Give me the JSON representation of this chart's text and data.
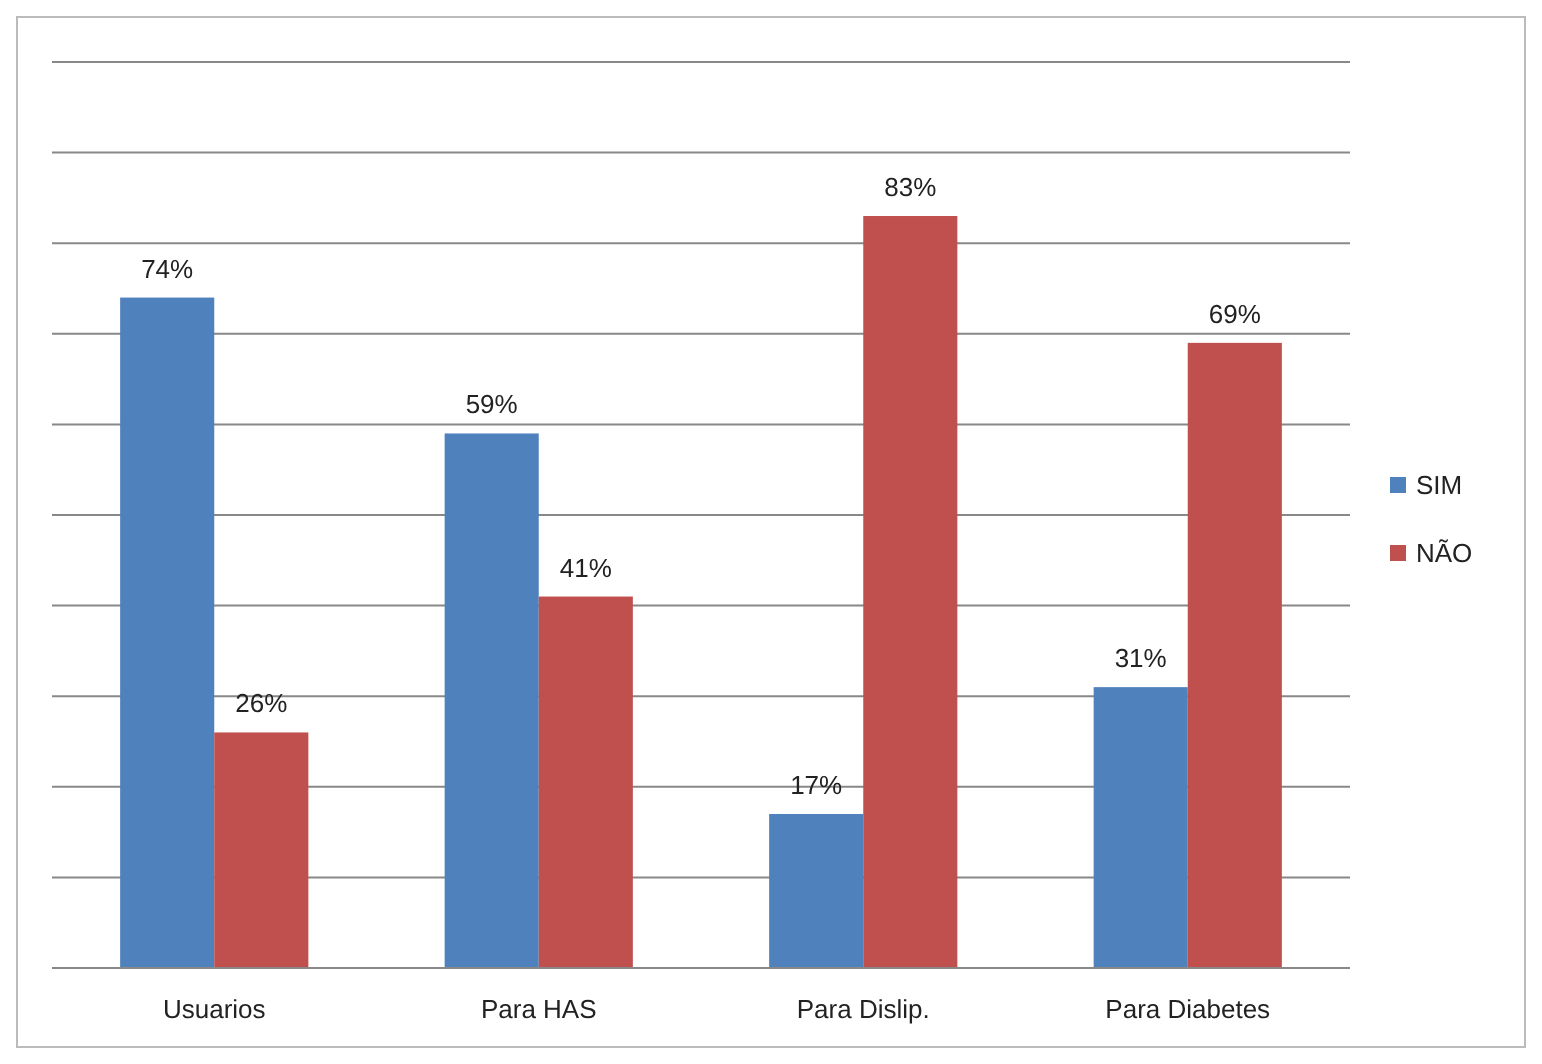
{
  "chart_data": {
    "type": "bar",
    "categories": [
      "Usuarios",
      "Para HAS",
      "Para Dislip.",
      "Para Diabetes"
    ],
    "series": [
      {
        "name": "SIM",
        "color": "#4f81bd",
        "values": [
          74,
          59,
          17,
          31
        ],
        "value_labels": [
          "74%",
          "59%",
          "17%",
          "31%"
        ]
      },
      {
        "name": "NÃO",
        "color": "#c0504d",
        "values": [
          26,
          41,
          83,
          69
        ],
        "value_labels": [
          "26%",
          "41%",
          "83%",
          "69%"
        ]
      }
    ],
    "ylim": [
      0,
      100
    ],
    "yticks": [
      {
        "value": 0,
        "label": null
      },
      {
        "value": 10,
        "label": null
      },
      {
        "value": 20,
        "label": null
      },
      {
        "value": 30,
        "label": null
      },
      {
        "value": 40,
        "label": null
      },
      {
        "value": 50,
        "label": null
      },
      {
        "value": 60,
        "label": null
      },
      {
        "value": 70,
        "label": null
      },
      {
        "value": 80,
        "label": null
      },
      {
        "value": 90,
        "label": null
      },
      {
        "value": 100,
        "label": null
      }
    ],
    "grid": "y",
    "legend": "right",
    "tick_labels": "x"
  }
}
